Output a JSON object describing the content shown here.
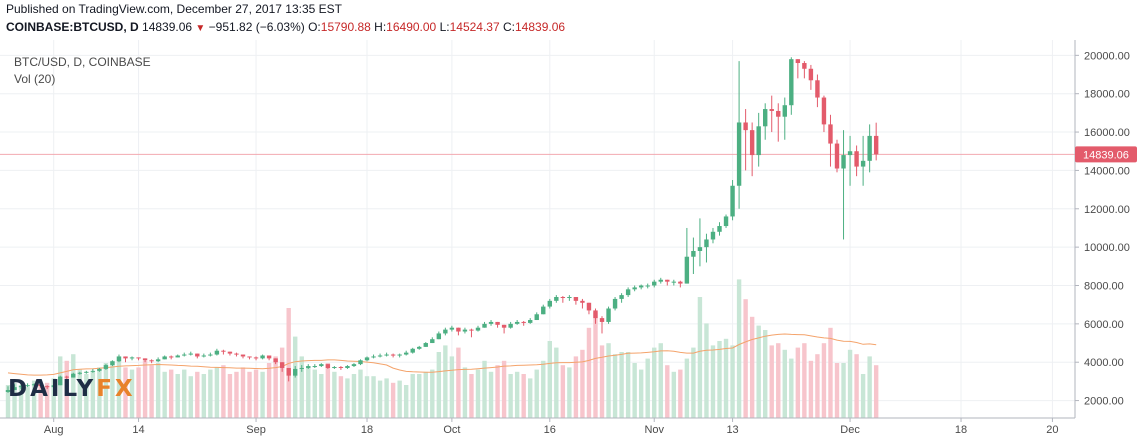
{
  "header": {
    "published": "Published on TradingView.com, December 27, 2017 13:35 EST",
    "symbol": "COINBASE:BTCUSD, D",
    "last": "14839.06",
    "change": "−951.82 (−6.03%)",
    "open_label": "O:",
    "open": "15790.88",
    "high_label": "H:",
    "high": "16490.00",
    "low_label": "L:",
    "low": "14524.37",
    "close_label": "C:",
    "close": "14839.06"
  },
  "legend": {
    "title": "BTC/USD, D, COINBASE",
    "volume": "Vol (20)"
  },
  "logo": {
    "part1": "DAILY",
    "part2": "FX"
  },
  "colors": {
    "up": "#4caf82",
    "down": "#e35b6b",
    "vol_up": "#c8e6d6",
    "vol_down": "#f7c5cc",
    "vol_ma": "#f4a36b",
    "grid": "#eef0f3",
    "price_line": "#f2a9b1",
    "price_tag": "#e35b6b"
  },
  "chart_data": {
    "type": "candlestick",
    "title": "BTC/USD, D, COINBASE",
    "y_range": [
      1300,
      20800
    ],
    "y_ticks": [
      "2000.00",
      "4000.00",
      "6000.00",
      "8000.00",
      "10000.00",
      "12000.00",
      "14000.00",
      "16000.00",
      "18000.00",
      "20000.00"
    ],
    "y_tick_values": [
      2000,
      4000,
      6000,
      8000,
      10000,
      12000,
      14000,
      16000,
      18000,
      20000
    ],
    "x_ticks": [
      "Aug",
      "14",
      "Sep",
      "18",
      "Oct",
      "16",
      "Nov",
      "13",
      "Dec",
      "18",
      "20"
    ],
    "x_tick_dates": [
      "2017-08-01",
      "2017-08-14",
      "2017-09-01",
      "2017-09-18",
      "2017-10-01",
      "2017-10-16",
      "2017-11-01",
      "2017-11-13",
      "2017-12-01",
      "2017-12-18",
      "2018-01-01"
    ],
    "date_range": [
      "2017-07-25",
      "2018-01-04"
    ],
    "last_price": 14839.06,
    "last_price_label": "14839.06",
    "grid": true,
    "series": [
      {
        "name": "BTC/USD",
        "start_date": "2017-07-25",
        "close": [
          2550,
          2700,
          2750,
          2800,
          2850,
          2750,
          2700,
          2800,
          3250,
          3200,
          3400,
          3450,
          3500,
          3550,
          3650,
          3850,
          4050,
          4300,
          4200,
          4250,
          4200,
          4100,
          4050,
          4150,
          4300,
          4250,
          4350,
          4400,
          4450,
          4300,
          4350,
          4400,
          4600,
          4550,
          4450,
          4400,
          4300,
          4250,
          4200,
          4350,
          4200,
          4000,
          3700,
          3300,
          3650,
          3700,
          3800,
          3800,
          3900,
          3700,
          3750,
          3700,
          3800,
          3900,
          4100,
          4250,
          4300,
          4350,
          4400,
          4350,
          4400,
          4500,
          4700,
          4800,
          5000,
          5200,
          5500,
          5700,
          5800,
          5600,
          5700,
          5650,
          5800,
          6000,
          6100,
          5950,
          5800,
          6000,
          6100,
          6050,
          6200,
          6500,
          6900,
          7200,
          7400,
          7350,
          7400,
          7200,
          7100,
          6700,
          6300,
          6100,
          6800,
          7300,
          7500,
          7800,
          7900,
          8000,
          8000,
          8200,
          8300,
          8200,
          8200,
          8100,
          9500,
          9800,
          10000,
          10400,
          10800,
          11100,
          11600,
          13200,
          16500,
          16100,
          14800,
          16300,
          17200,
          17100,
          16800,
          17400,
          19800,
          19600,
          19300,
          18700,
          17800,
          16400,
          15400,
          14100,
          14800,
          15000,
          14200,
          14500,
          15800,
          14839.06
        ],
        "high": [
          2750,
          2850,
          2850,
          2900,
          2900,
          2850,
          2800,
          2850,
          3300,
          3300,
          3450,
          3500,
          3550,
          3650,
          3700,
          3900,
          4100,
          4400,
          4300,
          4300,
          4250,
          4200,
          4150,
          4250,
          4350,
          4350,
          4400,
          4500,
          4550,
          4450,
          4450,
          4500,
          4700,
          4650,
          4550,
          4500,
          4400,
          4300,
          4300,
          4400,
          4300,
          4200,
          4000,
          3700,
          3800,
          3850,
          3900,
          3900,
          3950,
          3900,
          3800,
          3800,
          3850,
          3950,
          4150,
          4300,
          4400,
          4450,
          4500,
          4450,
          4450,
          4600,
          4750,
          4850,
          5050,
          5300,
          5600,
          5800,
          5900,
          5800,
          5800,
          5750,
          5900,
          6100,
          6200,
          6100,
          5950,
          6100,
          6200,
          6150,
          6300,
          6600,
          7000,
          7300,
          7500,
          7450,
          7500,
          7400,
          7300,
          7100,
          6800,
          6400,
          6900,
          7400,
          7600,
          7900,
          8000,
          8050,
          8100,
          8300,
          8400,
          8300,
          8300,
          8250,
          11000,
          10500,
          11500,
          10700,
          11000,
          11300,
          11700,
          13500,
          19700,
          17200,
          16500,
          17000,
          17500,
          17900,
          17500,
          17800,
          19900,
          19800,
          19700,
          19500,
          19000,
          17900,
          16900,
          15600,
          16100,
          15800,
          15300,
          15800,
          16400,
          16490
        ],
        "low": [
          2400,
          2550,
          2600,
          2700,
          2750,
          2650,
          2600,
          2700,
          2800,
          3100,
          3200,
          3350,
          3400,
          3450,
          3500,
          3600,
          3800,
          4000,
          4000,
          4100,
          4100,
          4000,
          3950,
          4000,
          4150,
          4150,
          4250,
          4300,
          4350,
          4200,
          4250,
          4300,
          4350,
          4400,
          4350,
          4300,
          4200,
          4150,
          4100,
          4150,
          4100,
          3900,
          3500,
          3000,
          3200,
          3500,
          3650,
          3700,
          3750,
          3650,
          3650,
          3600,
          3650,
          3750,
          3850,
          4050,
          4200,
          4250,
          4300,
          4250,
          4250,
          4350,
          4450,
          4650,
          4800,
          5000,
          5200,
          5400,
          5600,
          5400,
          5500,
          5300,
          5600,
          5800,
          5900,
          5800,
          5500,
          5750,
          5950,
          5900,
          6000,
          6200,
          6500,
          6800,
          7100,
          7100,
          7200,
          7000,
          6800,
          6500,
          6000,
          5500,
          6000,
          6700,
          7100,
          7400,
          7700,
          7800,
          7850,
          7900,
          8100,
          8000,
          8000,
          7900,
          8100,
          8600,
          9000,
          9200,
          10200,
          10600,
          11000,
          11400,
          12000,
          14000,
          13700,
          14200,
          15600,
          16000,
          15500,
          15600,
          16900,
          18800,
          18800,
          18200,
          17300,
          16000,
          14200,
          13900,
          10400,
          13200,
          13700,
          13200,
          13900,
          14524.37
        ],
        "volume": [
          1500,
          1600,
          1500,
          1400,
          1700,
          1500,
          1600,
          1800,
          2800,
          2600,
          2900,
          2200,
          2000,
          2100,
          2300,
          2500,
          2600,
          2800,
          2300,
          2200,
          2300,
          2600,
          2400,
          2500,
          2100,
          2200,
          2000,
          2200,
          1900,
          2100,
          2000,
          2200,
          2300,
          2400,
          2000,
          2100,
          2300,
          2100,
          2200,
          2100,
          2500,
          2800,
          3200,
          5000,
          3700,
          2800,
          2300,
          2200,
          2000,
          2500,
          2100,
          1900,
          1800,
          2000,
          2200,
          1900,
          1900,
          1700,
          1800,
          1600,
          1700,
          1500,
          2000,
          2000,
          2100,
          2200,
          3000,
          3300,
          2800,
          3200,
          2300,
          2000,
          2200,
          2600,
          2100,
          2400,
          2600,
          2000,
          2100,
          2000,
          1800,
          2200,
          2600,
          3500,
          3200,
          2400,
          2300,
          2800,
          3100,
          4100,
          4800,
          3300,
          3400,
          2900,
          3000,
          3000,
          2500,
          2200,
          2700,
          3200,
          3400,
          2400,
          2100,
          2200,
          2700,
          3200,
          5500,
          4300,
          3300,
          3500,
          3600,
          3300,
          6300,
          5400,
          4600,
          4200,
          4000,
          3300,
          3400,
          3100,
          2700,
          3200,
          3400,
          2600,
          2900,
          3400,
          4100,
          2500,
          2500,
          3100,
          2900,
          2000,
          2800,
          2400
        ],
        "volume_ma": [
          2050,
          2020,
          1990,
          1960,
          1950,
          1950,
          1960,
          1980,
          2050,
          2120,
          2190,
          2220,
          2230,
          2240,
          2260,
          2290,
          2320,
          2350,
          2370,
          2380,
          2390,
          2410,
          2420,
          2430,
          2420,
          2410,
          2390,
          2380,
          2360,
          2350,
          2330,
          2310,
          2300,
          2290,
          2280,
          2270,
          2270,
          2260,
          2250,
          2240,
          2260,
          2290,
          2340,
          2480,
          2560,
          2590,
          2610,
          2620,
          2620,
          2640,
          2640,
          2620,
          2590,
          2580,
          2570,
          2540,
          2510,
          2460,
          2410,
          2270,
          2180,
          2120,
          2100,
          2090,
          2080,
          2080,
          2110,
          2140,
          2170,
          2200,
          2210,
          2220,
          2240,
          2270,
          2290,
          2320,
          2360,
          2370,
          2390,
          2400,
          2410,
          2420,
          2440,
          2480,
          2510,
          2520,
          2520,
          2530,
          2550,
          2620,
          2710,
          2760,
          2820,
          2850,
          2890,
          2940,
          2950,
          2960,
          2980,
          3010,
          3050,
          3060,
          3030,
          2980,
          2950,
          2950,
          3030,
          3080,
          3090,
          3120,
          3160,
          3180,
          3340,
          3460,
          3570,
          3640,
          3720,
          3770,
          3800,
          3820,
          3800,
          3790,
          3780,
          3730,
          3680,
          3640,
          3620,
          3540,
          3490,
          3480,
          3430,
          3350,
          3370,
          3330
        ]
      }
    ]
  }
}
